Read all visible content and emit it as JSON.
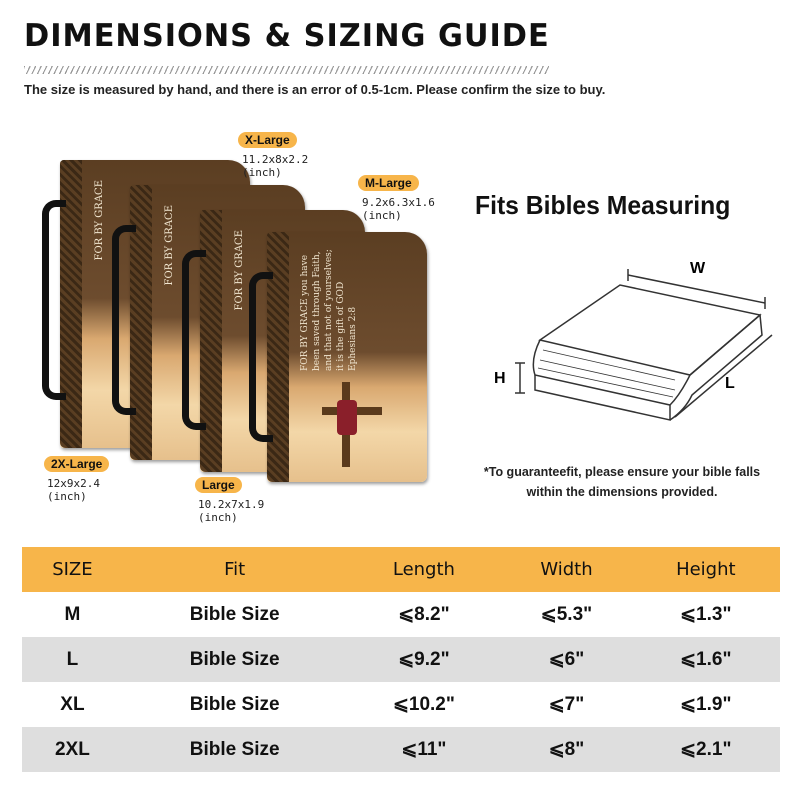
{
  "header": {
    "title": "DIMENSIONS & SIZING GUIDE",
    "subtitle": "The size is measured by hand, and there is an error of 0.5-1cm. Please confirm the size to buy."
  },
  "sizes": [
    {
      "label": "X-Large",
      "dims": "11.2x8x2.2",
      "unit": "(inch)"
    },
    {
      "label": "M-Large",
      "dims": "9.2x6.3x1.6",
      "unit": "(inch)"
    },
    {
      "label": "2X-Large",
      "dims": "12x9x2.4",
      "unit": "(inch)"
    },
    {
      "label": "Large",
      "dims": "10.2x7x1.9",
      "unit": "(inch)"
    }
  ],
  "cover_art_text": "FOR BY GRACE you have been saved through Faith, and that not of yourselves; it is the gift of GOD Ephesians 2:8",
  "fits": {
    "title": "Fits Bibles Measuring",
    "w": "W",
    "h": "H",
    "l": "L",
    "note_line1": "*To guaranteefit, please ensure your bible falls",
    "note_line2": "within the dimensions provided."
  },
  "table": {
    "headers": [
      "SIZE",
      "Fit",
      "Length",
      "Width",
      "Height"
    ],
    "rows": [
      [
        "M",
        "Bible Size",
        "⩽8.2\"",
        "⩽5.3\"",
        "⩽1.3\""
      ],
      [
        "L",
        "Bible Size",
        "⩽9.2\"",
        "⩽6\"",
        "⩽1.6\""
      ],
      [
        "XL",
        "Bible Size",
        "⩽10.2\"",
        "⩽7\"",
        "⩽1.9\""
      ],
      [
        "2XL",
        "Bible Size",
        "⩽11\"",
        "⩽8\"",
        "⩽2.1\""
      ]
    ]
  },
  "colors": {
    "accent": "#f7b54a",
    "row_alt": "#dedede"
  }
}
